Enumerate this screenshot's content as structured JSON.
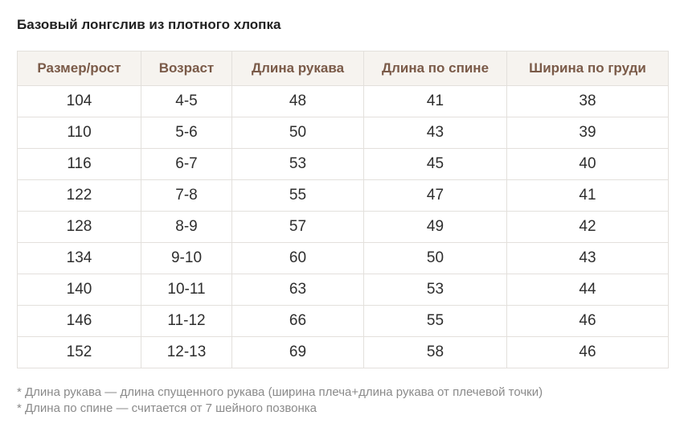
{
  "title": "Базовый лонгслив из плотного хлопка",
  "table": {
    "headers": [
      "Размер/рост",
      "Возраст",
      "Длина рукава",
      "Длина по спине",
      "Ширина по груди"
    ],
    "rows": [
      [
        "104",
        "4-5",
        "48",
        "41",
        "38"
      ],
      [
        "110",
        "5-6",
        "50",
        "43",
        "39"
      ],
      [
        "116",
        "6-7",
        "53",
        "45",
        "40"
      ],
      [
        "122",
        "7-8",
        "55",
        "47",
        "41"
      ],
      [
        "128",
        "8-9",
        "57",
        "49",
        "42"
      ],
      [
        "134",
        "9-10",
        "60",
        "50",
        "43"
      ],
      [
        "140",
        "10-11",
        "63",
        "53",
        "44"
      ],
      [
        "146",
        "11-12",
        "66",
        "55",
        "46"
      ],
      [
        "152",
        "12-13",
        "69",
        "58",
        "46"
      ]
    ]
  },
  "notes": [
    "* Длина рукава — длина спущенного рукава (ширина плеча+длина рукава от плечевой точки)",
    "* Длина по спине — считается от 7 шейного позвонка"
  ],
  "colors": {
    "header_text": "#7a5a48",
    "header_background": "#f6f3ef",
    "border": "#e3e0dc",
    "note_text": "#8a8a8a"
  }
}
